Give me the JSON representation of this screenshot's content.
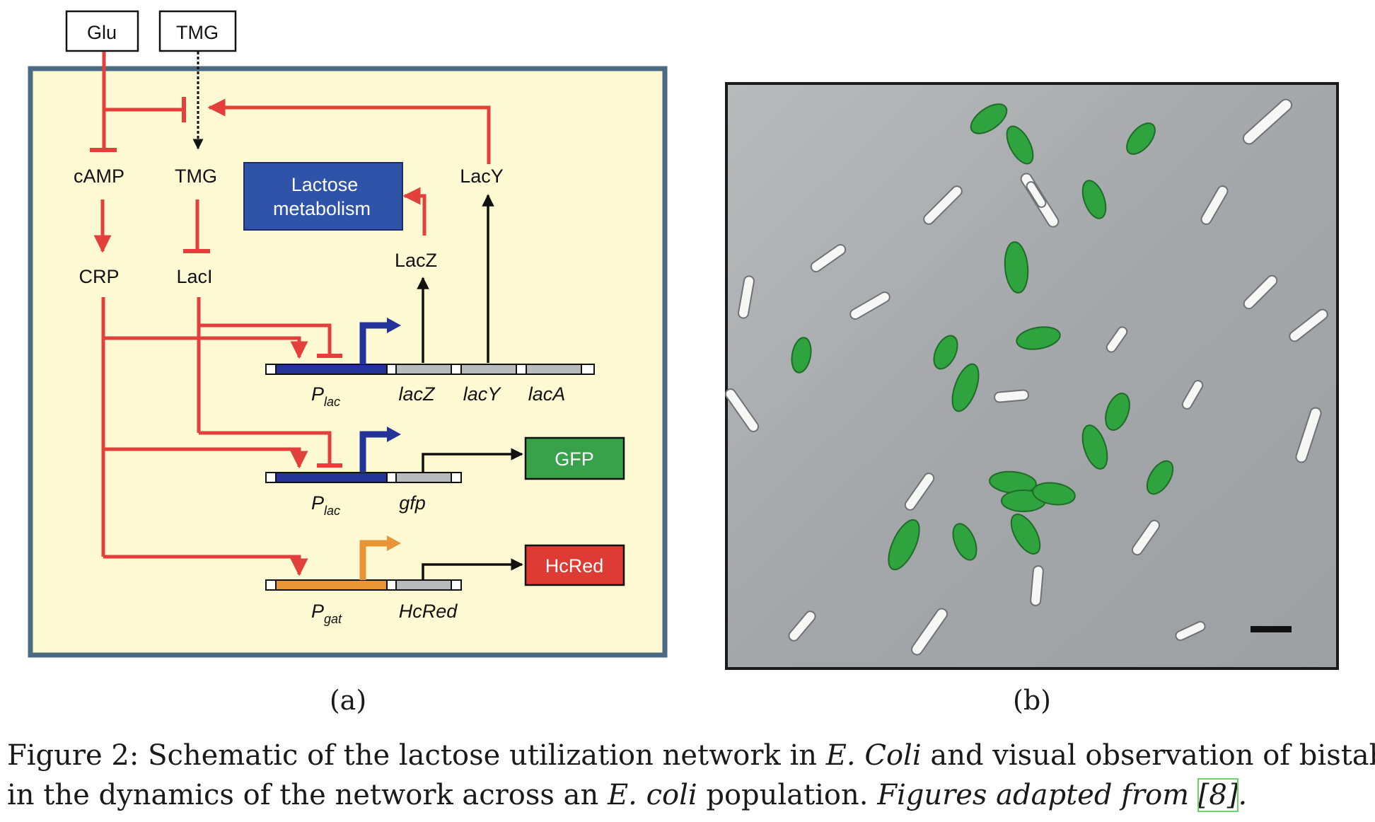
{
  "panel_a": {
    "inputs": {
      "glu": "Glu",
      "tmg": "TMG"
    },
    "nodes": {
      "camp": "cAMP",
      "tmg": "TMG",
      "crp": "CRP",
      "laci": "LacI",
      "lacy": "LacY",
      "lacz": "LacZ",
      "lactose_line1": "Lactose",
      "lactose_line2": "metabolism"
    },
    "genes": {
      "plac1_main": "P",
      "plac1_sub": "lac",
      "lacz": "lacZ",
      "lacy": "lacY",
      "laca": "lacA",
      "plac2_main": "P",
      "plac2_sub": "lac",
      "gfp": "gfp",
      "pgat_main": "P",
      "pgat_sub": "gat",
      "hcred": "HcRed"
    },
    "outputs": {
      "gfp": "GFP",
      "hcred": "HcRed"
    },
    "label": "(a)"
  },
  "panel_b": {
    "label": "(b)"
  },
  "caption": {
    "line1_pre": "Figure 2: Schematic of the lactose utilization network in ",
    "line1_it": "E. Coli",
    "line1_post": " and visual observation of bistability",
    "line2_pre": "in the dynamics of the network across an ",
    "line2_it1": "E. coli",
    "line2_mid": " population. ",
    "line2_it2": "Figures adapted from ",
    "line2_ref": "[8]",
    "line2_end": "."
  },
  "colors": {
    "panel_bg": "#fdf9d3",
    "panel_border": "#4b6a84",
    "red": "#e33f3b",
    "blue": "#23339a",
    "orange": "#e89538",
    "gfp_box": "#38a24a",
    "hcred_box": "#dd3b33",
    "lactose_box": "#2f53a8",
    "micro_bg": "#a7aaad",
    "green_cell": "#2fa33d"
  }
}
